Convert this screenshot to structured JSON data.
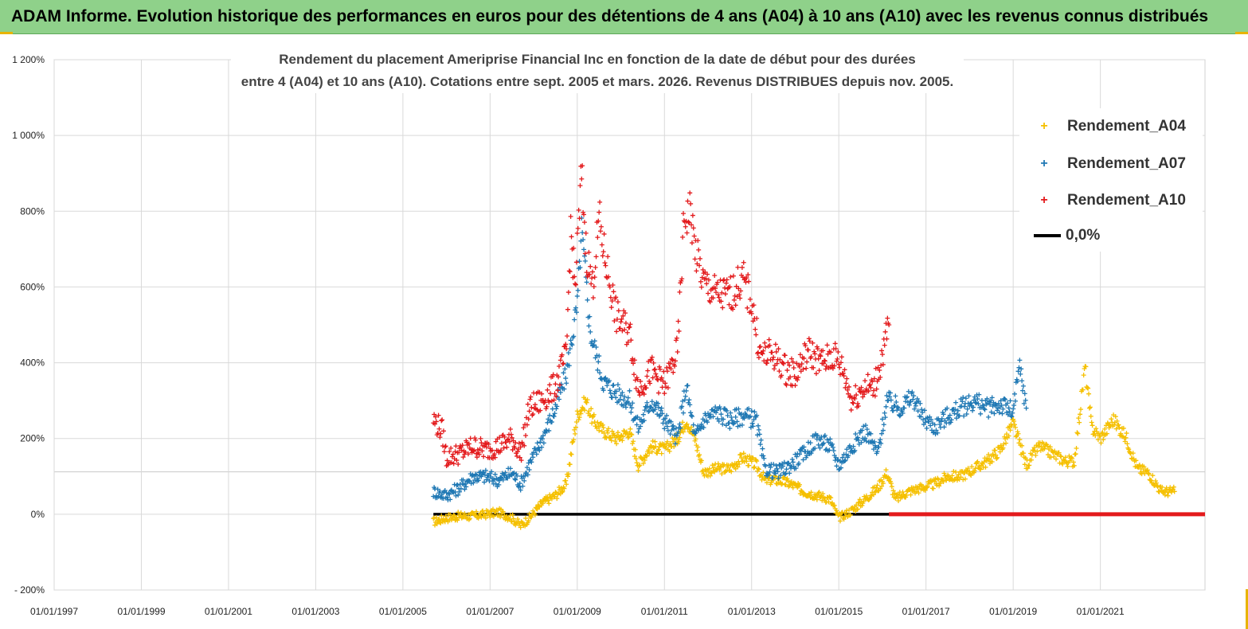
{
  "banner": {
    "title": "ADAM Informe. Evolution historique des performances en euros pour des détentions de 4 ans (A04) à 10 ans (A10) avec les revenus connus distribués"
  },
  "chart_data": {
    "type": "scatter",
    "title_line1": "Rendement du placement Ameriprise Financial Inc en fonction de la date de début pour des durées",
    "title_line2": "entre 4 (A04) et 10 ans (A10). Cotations entre sept. 2005 et mars. 2026. Revenus DISTRIBUES depuis nov. 2005.",
    "x_ticks": [
      "01/01/1997",
      "01/01/1999",
      "01/01/2001",
      "01/01/2003",
      "01/01/2005",
      "01/01/2007",
      "01/01/2009",
      "01/01/2011",
      "01/01/2013",
      "01/01/2015",
      "01/01/2017",
      "01/01/2019",
      "01/01/2021"
    ],
    "x_range": [
      1997.0,
      2023.4
    ],
    "y_ticks": [
      "- 200%",
      "0%",
      "200%",
      "400%",
      "600%",
      "800%",
      "1 000%",
      "1 200%"
    ],
    "y_range": [
      -200,
      1200
    ],
    "legend_position": "top-right",
    "grid": true,
    "series": [
      {
        "name": "Rendement_A04",
        "color": "#f5c000",
        "marker": "+",
        "points": [
          [
            2005.7,
            -20
          ],
          [
            2006.0,
            -10
          ],
          [
            2006.3,
            -5
          ],
          [
            2006.6,
            -5
          ],
          [
            2006.9,
            0
          ],
          [
            2007.2,
            5
          ],
          [
            2007.5,
            -10
          ],
          [
            2007.7,
            -30
          ],
          [
            2007.9,
            -10
          ],
          [
            2008.2,
            30
          ],
          [
            2008.5,
            50
          ],
          [
            2008.75,
            80
          ],
          [
            2008.9,
            190
          ],
          [
            2009.0,
            260
          ],
          [
            2009.2,
            300
          ],
          [
            2009.35,
            250
          ],
          [
            2009.6,
            220
          ],
          [
            2009.9,
            200
          ],
          [
            2010.2,
            220
          ],
          [
            2010.4,
            130
          ],
          [
            2010.7,
            180
          ],
          [
            2011.0,
            170
          ],
          [
            2011.3,
            200
          ],
          [
            2011.5,
            250
          ],
          [
            2011.7,
            200
          ],
          [
            2011.9,
            110
          ],
          [
            2012.2,
            120
          ],
          [
            2012.5,
            120
          ],
          [
            2012.8,
            150
          ],
          [
            2013.1,
            130
          ],
          [
            2013.3,
            90
          ],
          [
            2013.6,
            90
          ],
          [
            2013.9,
            80
          ],
          [
            2014.2,
            60
          ],
          [
            2014.5,
            50
          ],
          [
            2014.8,
            40
          ],
          [
            2015.0,
            -10
          ],
          [
            2015.3,
            10
          ],
          [
            2015.6,
            40
          ],
          [
            2015.9,
            70
          ],
          [
            2016.1,
            110
          ],
          [
            2016.3,
            40
          ],
          [
            2016.6,
            60
          ],
          [
            2016.9,
            70
          ],
          [
            2017.2,
            80
          ],
          [
            2017.5,
            100
          ],
          [
            2017.8,
            100
          ],
          [
            2018.1,
            120
          ],
          [
            2018.4,
            140
          ],
          [
            2018.7,
            170
          ],
          [
            2019.0,
            240
          ],
          [
            2019.3,
            130
          ],
          [
            2019.6,
            180
          ],
          [
            2019.9,
            160
          ],
          [
            2020.2,
            140
          ],
          [
            2020.4,
            140
          ],
          [
            2020.65,
            390
          ],
          [
            2020.8,
            230
          ],
          [
            2021.0,
            200
          ],
          [
            2021.3,
            250
          ],
          [
            2021.6,
            200
          ],
          [
            2021.85,
            120
          ],
          [
            2022.1,
            110
          ],
          [
            2022.4,
            60
          ],
          [
            2022.7,
            60
          ]
        ]
      },
      {
        "name": "Rendement_A07",
        "color": "#1f78b4",
        "marker": "+",
        "points": [
          [
            2005.7,
            60
          ],
          [
            2006.0,
            50
          ],
          [
            2006.3,
            70
          ],
          [
            2006.6,
            100
          ],
          [
            2006.9,
            100
          ],
          [
            2007.2,
            90
          ],
          [
            2007.5,
            110
          ],
          [
            2007.7,
            80
          ],
          [
            2007.9,
            130
          ],
          [
            2008.2,
            200
          ],
          [
            2008.5,
            280
          ],
          [
            2008.75,
            370
          ],
          [
            2008.9,
            480
          ],
          [
            2009.0,
            550
          ],
          [
            2009.1,
            750
          ],
          [
            2009.3,
            480
          ],
          [
            2009.6,
            350
          ],
          [
            2009.9,
            320
          ],
          [
            2010.2,
            300
          ],
          [
            2010.4,
            230
          ],
          [
            2010.7,
            300
          ],
          [
            2011.0,
            250
          ],
          [
            2011.3,
            200
          ],
          [
            2011.5,
            340
          ],
          [
            2011.7,
            200
          ],
          [
            2011.9,
            250
          ],
          [
            2012.2,
            270
          ],
          [
            2012.5,
            250
          ],
          [
            2012.8,
            260
          ],
          [
            2013.1,
            250
          ],
          [
            2013.3,
            120
          ],
          [
            2013.6,
            110
          ],
          [
            2013.9,
            130
          ],
          [
            2014.2,
            160
          ],
          [
            2014.5,
            200
          ],
          [
            2014.8,
            180
          ],
          [
            2015.0,
            130
          ],
          [
            2015.3,
            180
          ],
          [
            2015.6,
            220
          ],
          [
            2015.9,
            160
          ],
          [
            2016.1,
            300
          ],
          [
            2016.4,
            280
          ],
          [
            2016.7,
            310
          ],
          [
            2016.9,
            260
          ],
          [
            2017.2,
            230
          ],
          [
            2017.5,
            260
          ],
          [
            2017.8,
            280
          ],
          [
            2018.1,
            300
          ],
          [
            2018.4,
            280
          ],
          [
            2018.7,
            290
          ],
          [
            2019.0,
            270
          ],
          [
            2019.15,
            390
          ],
          [
            2019.3,
            280
          ]
        ]
      },
      {
        "name": "Rendement_A10",
        "color": "#e31a1c",
        "marker": "+",
        "points": [
          [
            2005.7,
            250
          ],
          [
            2005.9,
            220
          ],
          [
            2006.0,
            150
          ],
          [
            2006.3,
            160
          ],
          [
            2006.6,
            180
          ],
          [
            2006.9,
            170
          ],
          [
            2007.2,
            180
          ],
          [
            2007.5,
            200
          ],
          [
            2007.7,
            160
          ],
          [
            2007.9,
            280
          ],
          [
            2008.2,
            300
          ],
          [
            2008.5,
            340
          ],
          [
            2008.75,
            420
          ],
          [
            2008.85,
            750
          ],
          [
            2008.95,
            600
          ],
          [
            2009.1,
            900
          ],
          [
            2009.2,
            700
          ],
          [
            2009.35,
            600
          ],
          [
            2009.5,
            780
          ],
          [
            2009.6,
            700
          ],
          [
            2009.9,
            520
          ],
          [
            2010.2,
            480
          ],
          [
            2010.4,
            330
          ],
          [
            2010.7,
            380
          ],
          [
            2011.0,
            340
          ],
          [
            2011.3,
            430
          ],
          [
            2011.45,
            780
          ],
          [
            2011.6,
            800
          ],
          [
            2011.7,
            700
          ],
          [
            2011.9,
            610
          ],
          [
            2012.2,
            580
          ],
          [
            2012.5,
            580
          ],
          [
            2012.8,
            620
          ],
          [
            2013.0,
            560
          ],
          [
            2013.2,
            420
          ],
          [
            2013.5,
            420
          ],
          [
            2013.8,
            380
          ],
          [
            2014.0,
            370
          ],
          [
            2014.3,
            430
          ],
          [
            2014.6,
            400
          ],
          [
            2014.9,
            420
          ],
          [
            2015.1,
            380
          ],
          [
            2015.3,
            300
          ],
          [
            2015.6,
            340
          ],
          [
            2015.8,
            330
          ],
          [
            2016.0,
            420
          ],
          [
            2016.15,
            500
          ]
        ]
      },
      {
        "name": "0,0%",
        "color": "#000000",
        "marker": "line",
        "points": [
          [
            2005.7,
            0
          ],
          [
            2023.4,
            0
          ]
        ]
      }
    ],
    "zero_overlay": {
      "color": "#e31a1c",
      "x_start": 2016.15,
      "x_end": 2023.4,
      "y": 0
    }
  }
}
